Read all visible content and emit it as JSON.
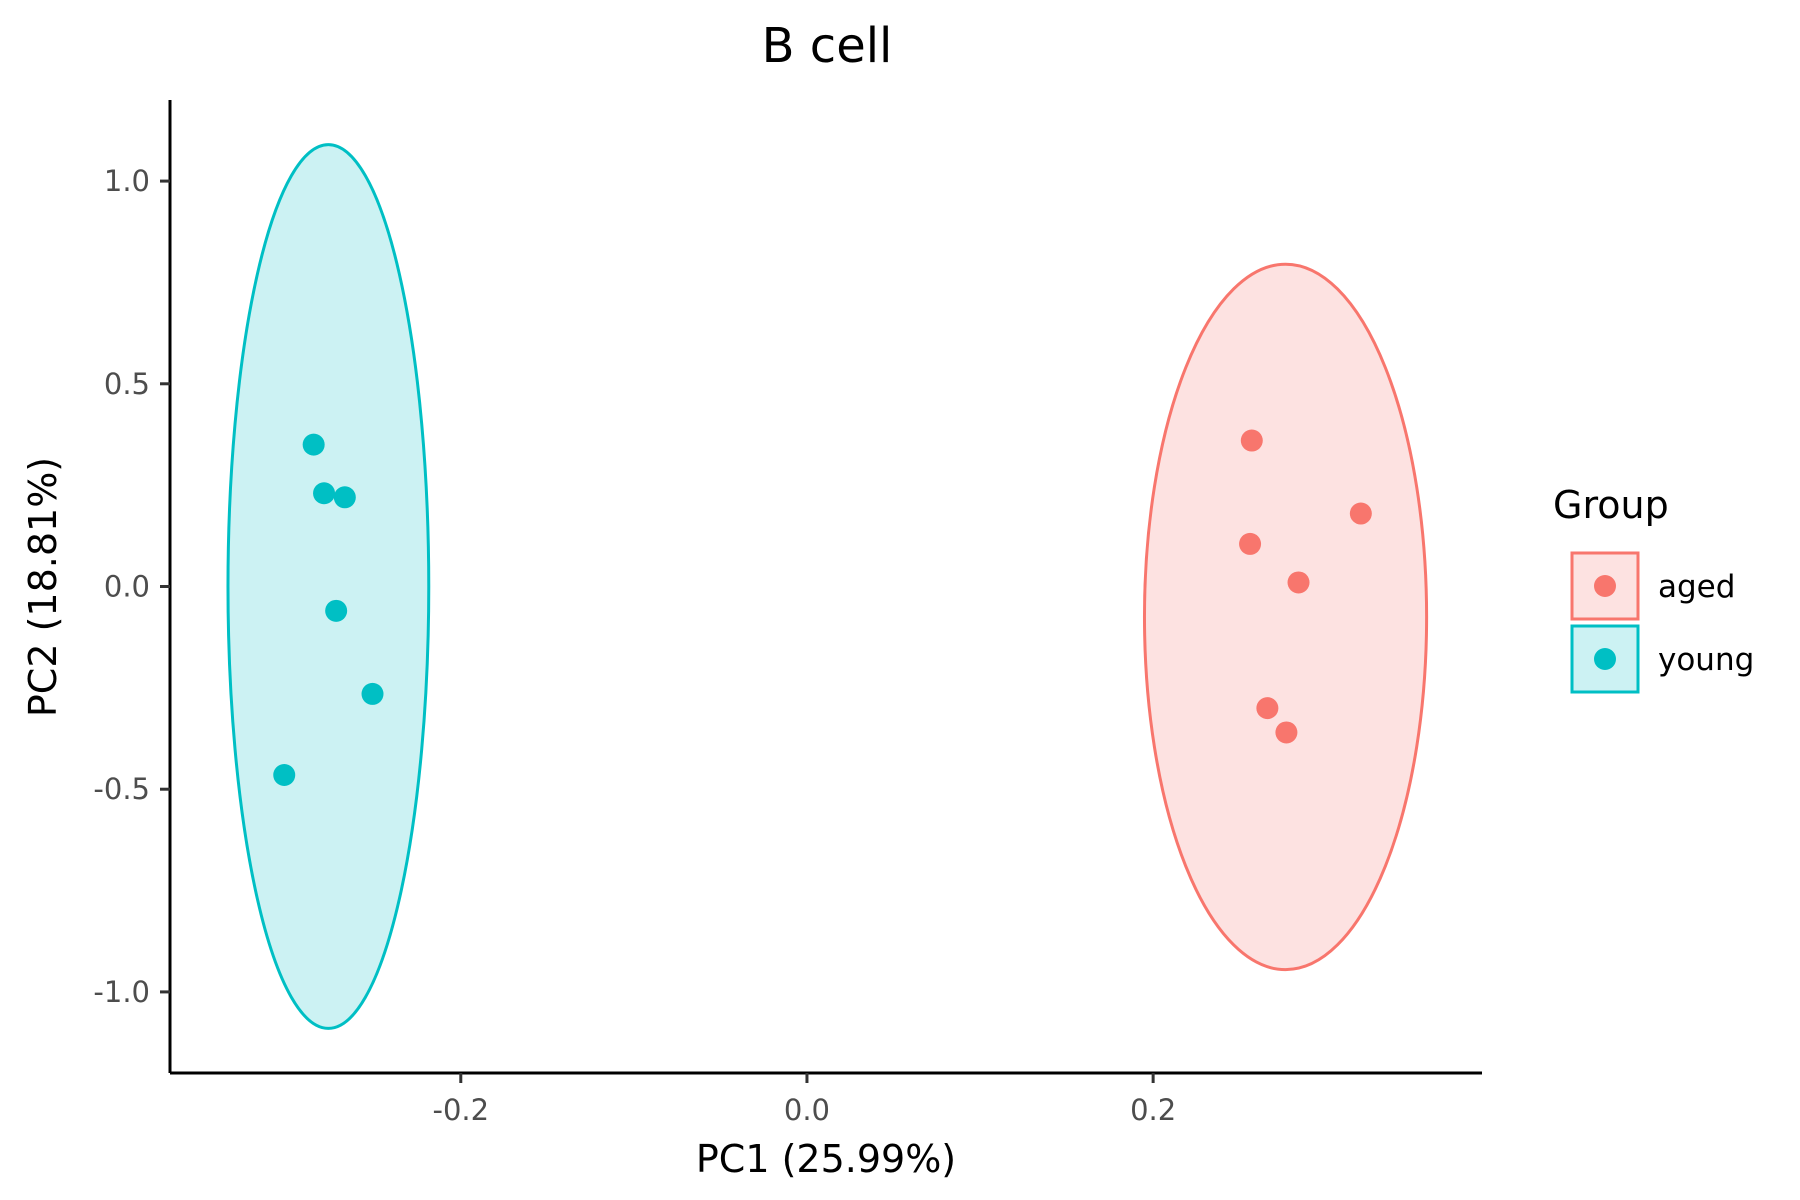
{
  "chart_data": {
    "type": "scatter",
    "title": "B cell",
    "xlabel": "PC1 (25.99%)",
    "ylabel": "PC2 (18.81%)",
    "xlim": [
      -0.368,
      0.39
    ],
    "ylim": [
      -1.2,
      1.2
    ],
    "xticks": [
      -0.2,
      0.0,
      0.2
    ],
    "xtick_labels": [
      "-0.2",
      "0.0",
      "0.2"
    ],
    "yticks": [
      -1.0,
      -0.5,
      0.0,
      0.5,
      1.0
    ],
    "ytick_labels": [
      "-1.0",
      "-0.5",
      "0.0",
      "0.5",
      "1.0"
    ],
    "grid": false,
    "legend": {
      "title": "Group",
      "position": "right"
    },
    "series": [
      {
        "name": "aged",
        "color": "#F8766D",
        "fill": "#FDE2E1",
        "points": [
          {
            "x": 0.257,
            "y": 0.36
          },
          {
            "x": 0.256,
            "y": 0.105
          },
          {
            "x": 0.284,
            "y": 0.01
          },
          {
            "x": 0.32,
            "y": 0.18
          },
          {
            "x": 0.266,
            "y": -0.3
          },
          {
            "x": 0.277,
            "y": -0.36
          }
        ],
        "ellipse": {
          "cx": 0.2765,
          "cy": -0.075,
          "rx": 0.0815,
          "ry": 0.87
        }
      },
      {
        "name": "young",
        "color": "#00BFC4",
        "fill": "#CCF2F3",
        "points": [
          {
            "x": -0.285,
            "y": 0.35
          },
          {
            "x": -0.279,
            "y": 0.23
          },
          {
            "x": -0.267,
            "y": 0.22
          },
          {
            "x": -0.272,
            "y": -0.06
          },
          {
            "x": -0.251,
            "y": -0.265
          },
          {
            "x": -0.302,
            "y": -0.465
          }
        ],
        "ellipse": {
          "cx": -0.2765,
          "cy": 0.0,
          "rx": 0.058,
          "ry": 1.09
        }
      }
    ]
  }
}
